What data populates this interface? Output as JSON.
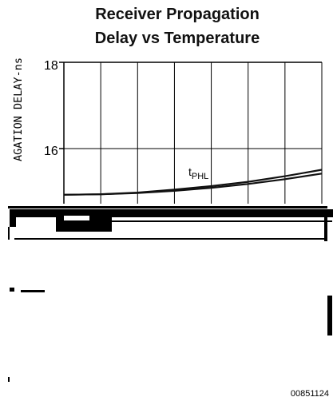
{
  "chart_data": {
    "type": "line",
    "title": [
      "Receiver Propagation",
      "Delay vs Temperature"
    ],
    "ylabel": "AGATION DELAY-ns",
    "y_ticks": [
      "18",
      "16"
    ],
    "ylim": [
      14.93,
      18
    ],
    "grid": true,
    "series": [
      {
        "name_main": "t",
        "name_sub": "PHL",
        "x": [
          0,
          1,
          2,
          3,
          4,
          5,
          6,
          7
        ],
        "values": [
          14.93,
          14.94,
          14.97,
          15.02,
          15.09,
          15.18,
          15.29,
          15.42
        ]
      },
      {
        "x": [
          0,
          1,
          2,
          3,
          4,
          5,
          6,
          7
        ],
        "values": [
          14.93,
          14.94,
          14.98,
          15.05,
          15.13,
          15.23,
          15.36,
          15.51
        ]
      }
    ]
  },
  "figure_id": "00851124",
  "colors": {
    "line": "#111111",
    "grid": "#000000",
    "background": "#ffffff"
  }
}
